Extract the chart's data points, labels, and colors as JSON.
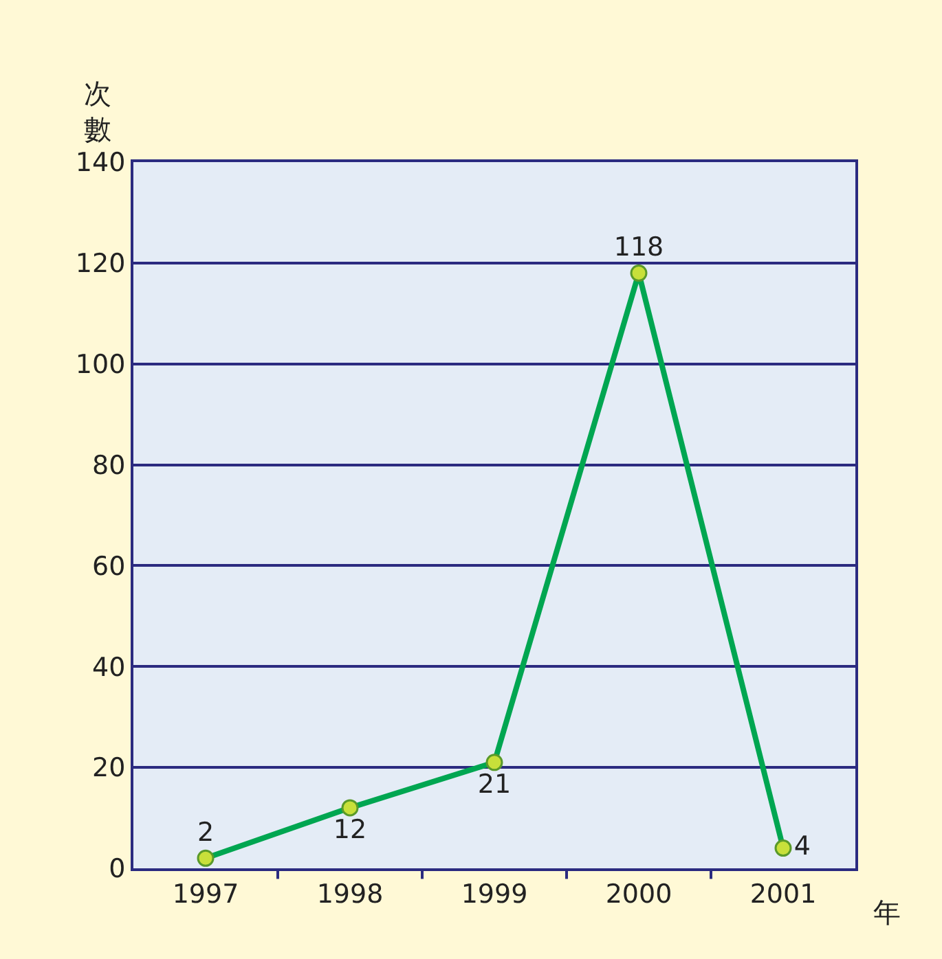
{
  "chart_data": {
    "type": "line",
    "categories": [
      "1997",
      "1998",
      "1999",
      "2000",
      "2001"
    ],
    "series": [
      {
        "color": "#00a651",
        "values": [
          2,
          12,
          21,
          118,
          4
        ]
      }
    ],
    "ylim": [
      0,
      140
    ],
    "yticks": [
      0,
      20,
      40,
      60,
      80,
      100,
      120,
      140
    ],
    "ylabel": "次數",
    "xlabel": "年",
    "data_labels": true,
    "grid": "y",
    "marker": "circle",
    "line_style": "solid",
    "legend": false
  }
}
